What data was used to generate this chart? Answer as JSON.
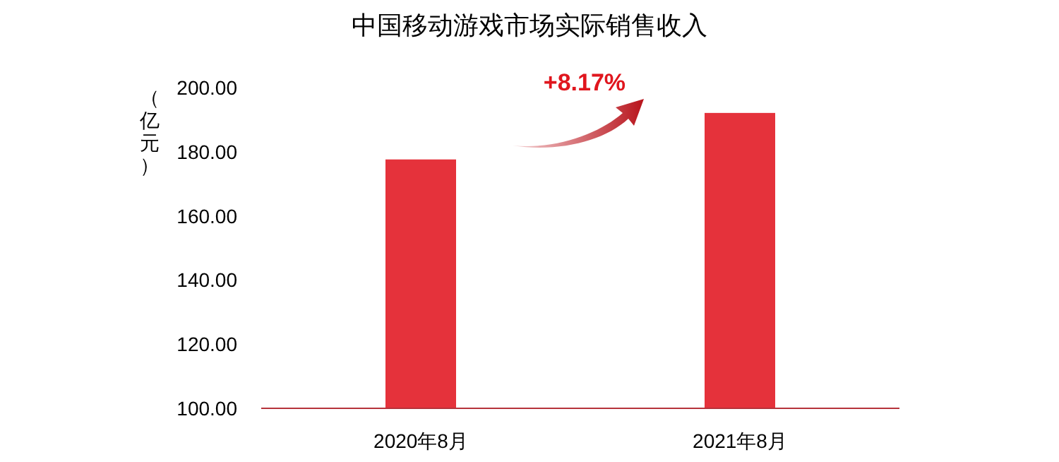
{
  "chart_data": {
    "type": "bar",
    "title": "中国移动游戏市场实际销售收入",
    "ylabel": "（亿元）",
    "categories": [
      "2020年8月",
      "2021年8月"
    ],
    "values": [
      177.6,
      192.1
    ],
    "color": "#e5323b",
    "ylim": [
      100,
      200
    ],
    "yticks": [
      {
        "value": 100,
        "label": "100.00"
      },
      {
        "value": 120,
        "label": "120.00"
      },
      {
        "value": 140,
        "label": "140.00"
      },
      {
        "value": 160,
        "label": "160.00"
      },
      {
        "value": 180,
        "label": "180.00"
      },
      {
        "value": 200,
        "label": "200.00"
      }
    ],
    "annotations": [
      "+8.17%"
    ]
  }
}
